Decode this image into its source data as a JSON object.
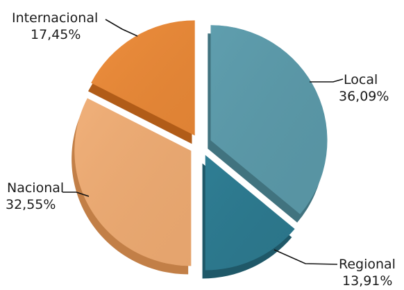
{
  "chart_data": {
    "type": "pie",
    "exploded": true,
    "title": "",
    "legend": "none",
    "labels_position": "outside-with-leader-lines",
    "series": [
      {
        "name": "",
        "slices": [
          {
            "label": "Local",
            "value": 36.09,
            "value_text": "36,09%",
            "color": "#5f9eae",
            "color_dark": "#41737f"
          },
          {
            "label": "Regional",
            "value": 13.91,
            "value_text": "13,91%",
            "color": "#2f7e94",
            "color_dark": "#1f5868"
          },
          {
            "label": "Nacional",
            "value": 32.55,
            "value_text": "32,55%",
            "color": "#f0b07a",
            "color_dark": "#c27f47"
          },
          {
            "label": "Internacional",
            "value": 17.45,
            "value_text": "17,45%",
            "color": "#ee8f3e",
            "color_dark": "#b15c18"
          }
        ]
      }
    ]
  }
}
